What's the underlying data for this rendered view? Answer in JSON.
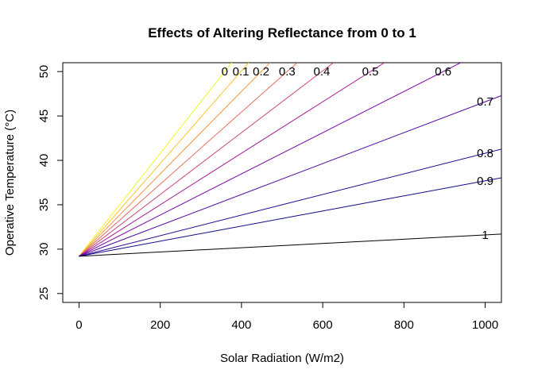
{
  "chart_data": {
    "type": "line",
    "title": "Effects of Altering Reflectance from 0 to 1",
    "xlabel": "Solar Radiation (W/m2)",
    "ylabel": "Operative Temperature (°C)",
    "xlim": [
      -40,
      1040
    ],
    "ylim": [
      24,
      51
    ],
    "xticks": [
      0,
      200,
      400,
      600,
      800,
      1000
    ],
    "yticks": [
      25,
      30,
      35,
      40,
      45,
      50
    ],
    "x_range": [
      0,
      1040
    ],
    "intercept": 29.2,
    "series": [
      {
        "name": "0",
        "label": "0",
        "slope": 0.058,
        "color": "#F0F921"
      },
      {
        "name": "0.1",
        "label": "0.1",
        "slope": 0.0522,
        "color": "#FDC328"
      },
      {
        "name": "0.2",
        "label": "0.2",
        "slope": 0.0464,
        "color": "#F89441"
      },
      {
        "name": "0.3",
        "label": "0.3",
        "slope": 0.0406,
        "color": "#E56B5D"
      },
      {
        "name": "0.4",
        "label": "0.4",
        "slope": 0.0348,
        "color": "#CB4679"
      },
      {
        "name": "0.5",
        "label": "0.5",
        "slope": 0.029,
        "color": "#A82296"
      },
      {
        "name": "0.6",
        "label": "0.6",
        "slope": 0.0232,
        "color": "#7D03A8"
      },
      {
        "name": "0.7",
        "label": "0.7",
        "slope": 0.0174,
        "color": "#4B03A1"
      },
      {
        "name": "0.8",
        "label": "0.8",
        "slope": 0.0116,
        "color": "#2A0593"
      },
      {
        "name": "0.9",
        "label": "0.9",
        "slope": 0.0085,
        "color": "#0D0887"
      },
      {
        "name": "1",
        "label": "1",
        "slope": 0.0024,
        "color": "#000000"
      }
    ]
  }
}
